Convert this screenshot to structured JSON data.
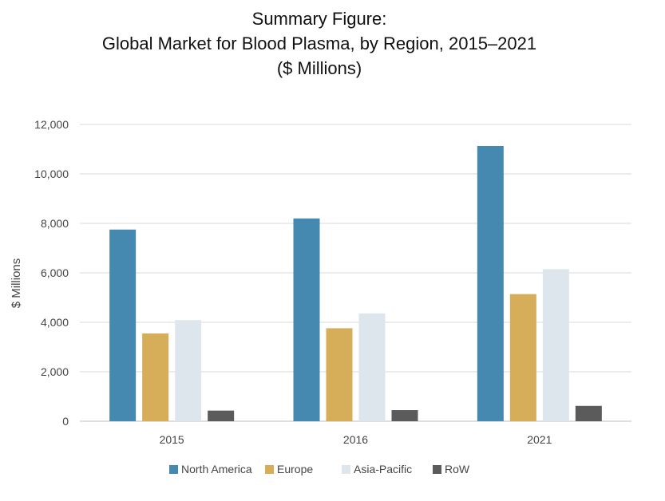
{
  "chart_data": {
    "type": "bar",
    "title_lines": [
      "Summary Figure:",
      "Global Market for Blood Plasma, by Region, 2015–2021",
      "($ Millions)"
    ],
    "xlabel": "",
    "ylabel": "$ Millions",
    "ylim": [
      0,
      12000
    ],
    "yticks": [
      0,
      2000,
      4000,
      6000,
      8000,
      10000,
      12000
    ],
    "ytick_labels": [
      "0",
      "2,000",
      "4,000",
      "6,000",
      "8,000",
      "10,000",
      "12,000"
    ],
    "grid": true,
    "legend_position": "bottom",
    "categories": [
      "2015",
      "2016",
      "2021"
    ],
    "series": [
      {
        "name": "North America",
        "color": "#4589b0",
        "values": [
          7750,
          8200,
          11130
        ]
      },
      {
        "name": "Europe",
        "color": "#d6ad58",
        "values": [
          3550,
          3760,
          5140
        ]
      },
      {
        "name": "Asia-Pacific",
        "color": "#dee6ed",
        "values": [
          4090,
          4360,
          6150
        ]
      },
      {
        "name": "RoW",
        "color": "#5b5b5b",
        "values": [
          430,
          450,
          620
        ]
      }
    ]
  }
}
